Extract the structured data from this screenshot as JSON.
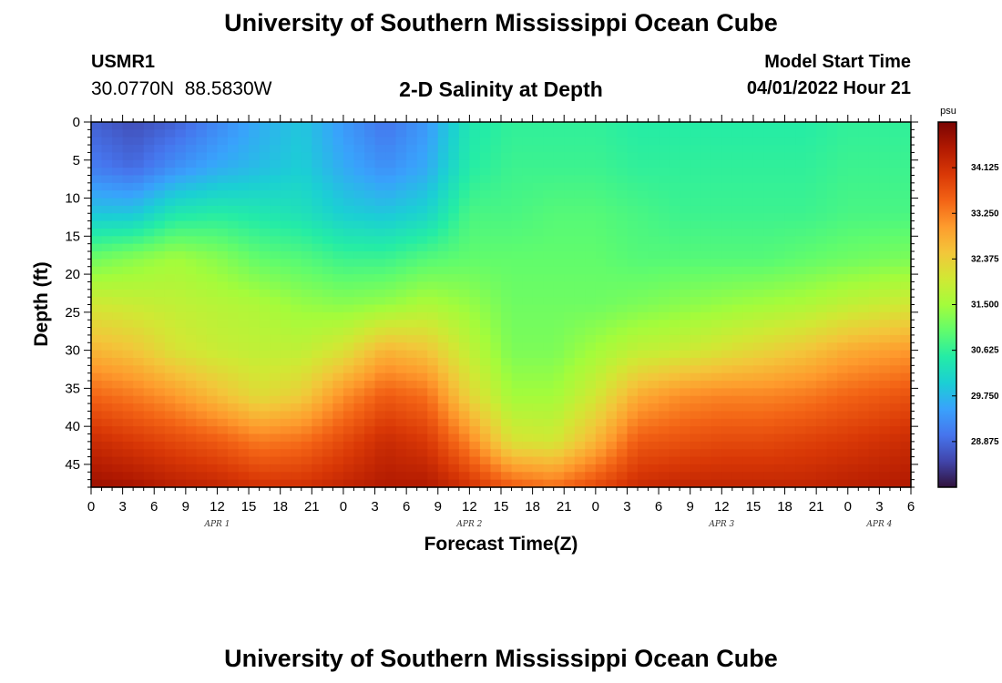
{
  "header": {
    "title": "University of Southern Mississippi Ocean Cube",
    "station_id": "USMR1",
    "station_coords": "30.0770N  88.5830W",
    "plot_subtitle": "2-D Salinity at Depth",
    "model_start_label": "Model Start Time",
    "model_start_value": "04/01/2022 Hour 21"
  },
  "footer": {
    "title": "University of Southern Mississippi Ocean Cube"
  },
  "chart_data": {
    "type": "heatmap",
    "title": "2-D Salinity at Depth",
    "xlabel": "Forecast Time(Z)",
    "ylabel": "Depth (ft)",
    "colorbar_unit": "psu",
    "x_tick_labels": [
      "0",
      "3",
      "6",
      "9",
      "12",
      "15",
      "18",
      "21",
      "0",
      "3",
      "6",
      "9",
      "12",
      "15",
      "18",
      "21",
      "0",
      "3",
      "6",
      "9",
      "12",
      "15",
      "18",
      "21",
      "0",
      "3",
      "6"
    ],
    "day_labels": [
      {
        "label": "APR 1",
        "hour": 12
      },
      {
        "label": "APR 2",
        "hour": 36
      },
      {
        "label": "APR 3",
        "hour": 60
      },
      {
        "label": "APR 4",
        "hour": 75
      }
    ],
    "x_range_hours": [
      0,
      78
    ],
    "y_ticks": [
      0,
      5,
      10,
      15,
      20,
      25,
      30,
      35,
      40,
      45
    ],
    "y_range_ft": [
      0,
      48
    ],
    "colorbar_ticks": [
      34.125,
      33.25,
      32.375,
      31.5,
      30.625,
      29.75,
      28.875
    ],
    "colorbar_range": [
      28.0,
      35.0
    ],
    "colorscale": [
      "#30123b",
      "#4145ab",
      "#4675ed",
      "#39a2fc",
      "#1bcfd4",
      "#24eca6",
      "#61fc6c",
      "#a4fc3b",
      "#d1e834",
      "#f3c63a",
      "#fe9b2d",
      "#f36315",
      "#d93806",
      "#b11901",
      "#7a0402"
    ],
    "hour_knots": [
      0,
      4,
      8,
      12,
      16,
      20,
      24,
      28,
      32,
      36,
      40,
      44,
      48,
      52,
      56,
      60,
      64,
      68,
      72,
      78
    ],
    "depth_knots": [
      0,
      6,
      12,
      18,
      24,
      30,
      36,
      42,
      48
    ],
    "salinity_psu": [
      [
        28.8,
        28.6,
        28.8,
        29.2,
        29.6,
        29.9,
        29.4,
        29.0,
        29.4,
        30.4,
        30.6,
        30.6,
        30.6,
        30.5,
        30.5,
        30.5,
        30.5,
        30.5,
        30.6,
        30.6
      ],
      [
        29.1,
        28.9,
        29.3,
        29.6,
        29.8,
        30.0,
        29.6,
        29.3,
        29.6,
        30.5,
        30.7,
        30.7,
        30.7,
        30.6,
        30.6,
        30.6,
        30.6,
        30.6,
        30.7,
        30.7
      ],
      [
        29.9,
        29.9,
        30.4,
        30.5,
        30.4,
        30.3,
        30.0,
        29.9,
        30.1,
        30.8,
        30.8,
        30.9,
        30.9,
        30.8,
        30.7,
        30.7,
        30.7,
        30.7,
        30.8,
        30.8
      ],
      [
        31.1,
        31.3,
        31.5,
        31.3,
        31.0,
        30.9,
        30.7,
        30.7,
        30.9,
        31.0,
        31.0,
        31.0,
        31.0,
        30.9,
        30.9,
        30.9,
        30.9,
        31.0,
        31.1,
        31.2
      ],
      [
        32.0,
        31.9,
        31.8,
        31.7,
        31.6,
        31.4,
        31.3,
        31.4,
        31.6,
        31.4,
        31.1,
        31.1,
        31.1,
        31.2,
        31.3,
        31.4,
        31.5,
        31.6,
        31.8,
        32.0
      ],
      [
        32.7,
        32.5,
        32.1,
        31.9,
        31.8,
        31.8,
        32.1,
        32.7,
        32.5,
        31.8,
        31.2,
        31.2,
        31.5,
        31.8,
        31.9,
        32.1,
        32.3,
        32.5,
        32.8,
        33.0
      ],
      [
        33.5,
        33.3,
        33.0,
        32.6,
        32.2,
        32.4,
        33.1,
        33.6,
        33.4,
        32.3,
        31.5,
        31.5,
        32.0,
        32.8,
        33.1,
        33.2,
        33.2,
        33.3,
        33.5,
        33.7
      ],
      [
        34.2,
        34.0,
        33.8,
        33.6,
        33.3,
        33.4,
        33.8,
        34.2,
        34.0,
        33.2,
        32.1,
        32.0,
        32.7,
        33.6,
        33.7,
        33.8,
        33.8,
        33.9,
        34.0,
        34.2
      ],
      [
        34.7,
        34.6,
        34.4,
        34.3,
        34.1,
        34.1,
        34.3,
        34.5,
        34.5,
        34.1,
        33.6,
        33.4,
        33.8,
        34.2,
        34.3,
        34.3,
        34.3,
        34.3,
        34.4,
        34.5
      ]
    ]
  }
}
